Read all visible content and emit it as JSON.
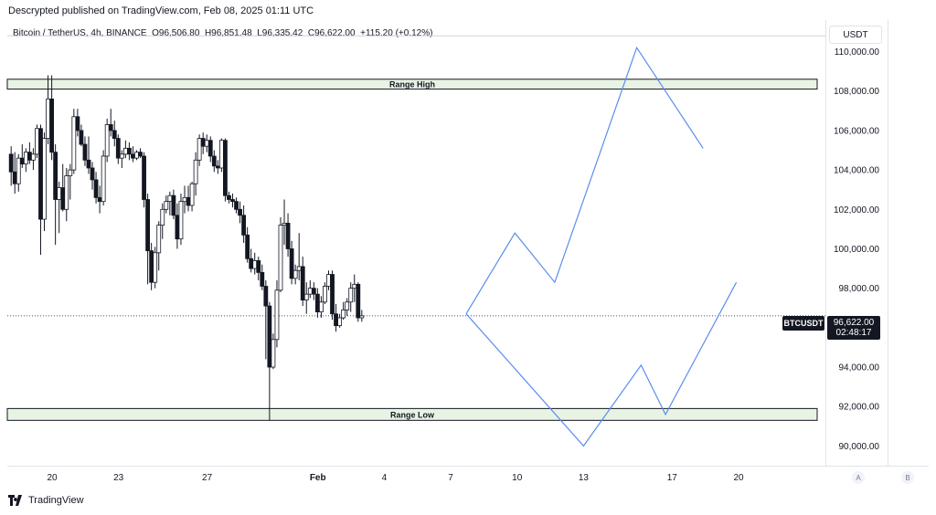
{
  "header": {
    "published": "Descrypted published on TradingView.com, Feb 08, 2025 01:11 UTC"
  },
  "symbol": {
    "name": "Bitcoin / TetherUS, 4h, BINANCE",
    "open": "O96,506.80",
    "high": "H96,851.48",
    "low": "L96,335.42",
    "close": "C96,622.00",
    "change": "+115.20 (+0.12%)"
  },
  "price_axis": {
    "currency": "USDT"
  },
  "last_price": {
    "symbol": "BTCUSDT",
    "value": "96,622.00",
    "countdown": "02:48:17"
  },
  "footer": {
    "logo_text": "TradingView",
    "btn_a": "A",
    "btn_b": "B"
  },
  "colors": {
    "up": "#ffffff",
    "down": "#131722",
    "projection": "#5b8def",
    "zone_fill": "#e8f3e4",
    "zone_border": "#131722"
  },
  "chart_data": {
    "type": "candlestick",
    "interval": "4h",
    "ylim": [
      89000,
      111600
    ],
    "y_ticks": [
      "90,000.00",
      "92,000.00",
      "94,000.00",
      "96,000.00",
      "98,000.00",
      "100,000.00",
      "102,000.00",
      "104,000.00",
      "106,000.00",
      "108,000.00",
      "110,000.00"
    ],
    "y_tick_values": [
      90000,
      92000,
      94000,
      96000,
      98000,
      100000,
      102000,
      104000,
      106000,
      108000,
      110000
    ],
    "x_ticks": [
      "20",
      "23",
      "27",
      "Feb",
      "4",
      "7",
      "10",
      "13",
      "17",
      "20"
    ],
    "x_tick_days": [
      20,
      23,
      27,
      32,
      35,
      38,
      41,
      44,
      48,
      51
    ],
    "zones": [
      {
        "label": "Range High",
        "from": 108100,
        "to": 108600
      },
      {
        "label": "Range Low",
        "from": 91300,
        "to": 91900
      }
    ],
    "candles": [
      {
        "o": 104800,
        "h": 105200,
        "l": 103200,
        "c": 103900
      },
      {
        "o": 103900,
        "h": 104900,
        "l": 102800,
        "c": 103300
      },
      {
        "o": 103300,
        "h": 104800,
        "l": 102900,
        "c": 104600
      },
      {
        "o": 104600,
        "h": 105300,
        "l": 104100,
        "c": 104300
      },
      {
        "o": 104300,
        "h": 105100,
        "l": 103900,
        "c": 104900
      },
      {
        "o": 104900,
        "h": 105400,
        "l": 104300,
        "c": 104500
      },
      {
        "o": 104500,
        "h": 105100,
        "l": 104000,
        "c": 104800
      },
      {
        "o": 104800,
        "h": 106300,
        "l": 104600,
        "c": 106100
      },
      {
        "o": 106100,
        "h": 106300,
        "l": 99700,
        "c": 101500
      },
      {
        "o": 101500,
        "h": 105900,
        "l": 100900,
        "c": 105600
      },
      {
        "o": 105600,
        "h": 108800,
        "l": 105300,
        "c": 107600
      },
      {
        "o": 107600,
        "h": 108800,
        "l": 104500,
        "c": 104900
      },
      {
        "o": 104900,
        "h": 105300,
        "l": 100200,
        "c": 102500
      },
      {
        "o": 102500,
        "h": 103400,
        "l": 100800,
        "c": 103100
      },
      {
        "o": 103100,
        "h": 104300,
        "l": 101900,
        "c": 102000
      },
      {
        "o": 102000,
        "h": 104100,
        "l": 101400,
        "c": 103700
      },
      {
        "o": 103700,
        "h": 104300,
        "l": 102500,
        "c": 104000
      },
      {
        "o": 104000,
        "h": 107100,
        "l": 103800,
        "c": 106700
      },
      {
        "o": 106700,
        "h": 107100,
        "l": 105700,
        "c": 106000
      },
      {
        "o": 106000,
        "h": 106300,
        "l": 105200,
        "c": 105300
      },
      {
        "o": 105300,
        "h": 105700,
        "l": 104200,
        "c": 104500
      },
      {
        "o": 104500,
        "h": 105700,
        "l": 103800,
        "c": 104100
      },
      {
        "o": 104100,
        "h": 104400,
        "l": 103000,
        "c": 103500
      },
      {
        "o": 103500,
        "h": 103900,
        "l": 102300,
        "c": 102600
      },
      {
        "o": 102600,
        "h": 103200,
        "l": 101800,
        "c": 102400
      },
      {
        "o": 102400,
        "h": 105000,
        "l": 102200,
        "c": 104700
      },
      {
        "o": 104700,
        "h": 106600,
        "l": 104400,
        "c": 106300
      },
      {
        "o": 106300,
        "h": 107100,
        "l": 105700,
        "c": 106000
      },
      {
        "o": 106000,
        "h": 106500,
        "l": 105200,
        "c": 105600
      },
      {
        "o": 105600,
        "h": 105800,
        "l": 104300,
        "c": 104600
      },
      {
        "o": 104600,
        "h": 105000,
        "l": 104100,
        "c": 104800
      },
      {
        "o": 104800,
        "h": 105500,
        "l": 104600,
        "c": 105100
      },
      {
        "o": 105100,
        "h": 105400,
        "l": 104500,
        "c": 104800
      },
      {
        "o": 104800,
        "h": 105200,
        "l": 104400,
        "c": 104600
      },
      {
        "o": 104600,
        "h": 105000,
        "l": 104500,
        "c": 104900
      },
      {
        "o": 104900,
        "h": 105100,
        "l": 104600,
        "c": 104700
      },
      {
        "o": 104700,
        "h": 104900,
        "l": 102100,
        "c": 102500
      },
      {
        "o": 102500,
        "h": 102800,
        "l": 98200,
        "c": 99900
      },
      {
        "o": 99900,
        "h": 100300,
        "l": 97900,
        "c": 98300
      },
      {
        "o": 98300,
        "h": 100100,
        "l": 98000,
        "c": 99800
      },
      {
        "o": 99800,
        "h": 101400,
        "l": 98900,
        "c": 101200
      },
      {
        "o": 101200,
        "h": 102300,
        "l": 100500,
        "c": 102000
      },
      {
        "o": 102000,
        "h": 102700,
        "l": 101800,
        "c": 102400
      },
      {
        "o": 102400,
        "h": 102900,
        "l": 101700,
        "c": 102700
      },
      {
        "o": 102700,
        "h": 103000,
        "l": 101500,
        "c": 101700
      },
      {
        "o": 101700,
        "h": 102300,
        "l": 100000,
        "c": 100500
      },
      {
        "o": 100500,
        "h": 102800,
        "l": 100200,
        "c": 102400
      },
      {
        "o": 102400,
        "h": 103200,
        "l": 101800,
        "c": 102600
      },
      {
        "o": 102600,
        "h": 103200,
        "l": 101900,
        "c": 102200
      },
      {
        "o": 102200,
        "h": 103400,
        "l": 101900,
        "c": 103300
      },
      {
        "o": 103300,
        "h": 104900,
        "l": 102700,
        "c": 104500
      },
      {
        "o": 104500,
        "h": 105800,
        "l": 104200,
        "c": 105600
      },
      {
        "o": 105600,
        "h": 105900,
        "l": 104800,
        "c": 105200
      },
      {
        "o": 105200,
        "h": 105800,
        "l": 104900,
        "c": 105500
      },
      {
        "o": 105500,
        "h": 105700,
        "l": 104400,
        "c": 104700
      },
      {
        "o": 104700,
        "h": 105000,
        "l": 103900,
        "c": 104200
      },
      {
        "o": 104200,
        "h": 104500,
        "l": 103800,
        "c": 104100
      },
      {
        "o": 104100,
        "h": 105600,
        "l": 103900,
        "c": 105500
      },
      {
        "o": 105500,
        "h": 105600,
        "l": 102400,
        "c": 102700
      },
      {
        "o": 102700,
        "h": 102900,
        "l": 102300,
        "c": 102500
      },
      {
        "o": 102500,
        "h": 102800,
        "l": 102100,
        "c": 102400
      },
      {
        "o": 102400,
        "h": 102600,
        "l": 101800,
        "c": 102000
      },
      {
        "o": 102000,
        "h": 102400,
        "l": 101300,
        "c": 101700
      },
      {
        "o": 101700,
        "h": 102200,
        "l": 100300,
        "c": 100700
      },
      {
        "o": 100700,
        "h": 101100,
        "l": 99300,
        "c": 99500
      },
      {
        "o": 99500,
        "h": 100000,
        "l": 98800,
        "c": 99000
      },
      {
        "o": 99000,
        "h": 99800,
        "l": 98700,
        "c": 99400
      },
      {
        "o": 99400,
        "h": 99600,
        "l": 98400,
        "c": 98800
      },
      {
        "o": 98800,
        "h": 99200,
        "l": 97900,
        "c": 98100
      },
      {
        "o": 98100,
        "h": 98400,
        "l": 94400,
        "c": 97100
      },
      {
        "o": 97100,
        "h": 97300,
        "l": 91300,
        "c": 94000
      },
      {
        "o": 94000,
        "h": 95700,
        "l": 93900,
        "c": 95400
      },
      {
        "o": 95400,
        "h": 98400,
        "l": 95000,
        "c": 97900
      },
      {
        "o": 97900,
        "h": 101600,
        "l": 97800,
        "c": 101200
      },
      {
        "o": 101200,
        "h": 102500,
        "l": 100200,
        "c": 101300
      },
      {
        "o": 101300,
        "h": 101800,
        "l": 99600,
        "c": 100000
      },
      {
        "o": 100000,
        "h": 100400,
        "l": 98200,
        "c": 98500
      },
      {
        "o": 98500,
        "h": 99200,
        "l": 98200,
        "c": 98900
      },
      {
        "o": 98900,
        "h": 100800,
        "l": 98400,
        "c": 99100
      },
      {
        "o": 99100,
        "h": 99600,
        "l": 97100,
        "c": 97400
      },
      {
        "o": 97400,
        "h": 98300,
        "l": 96700,
        "c": 97700
      },
      {
        "o": 97700,
        "h": 98400,
        "l": 97500,
        "c": 98000
      },
      {
        "o": 98000,
        "h": 98300,
        "l": 97400,
        "c": 97700
      },
      {
        "o": 97700,
        "h": 98000,
        "l": 96500,
        "c": 96800
      },
      {
        "o": 96800,
        "h": 97600,
        "l": 96500,
        "c": 97300
      },
      {
        "o": 97300,
        "h": 98300,
        "l": 97200,
        "c": 98100
      },
      {
        "o": 98100,
        "h": 98900,
        "l": 97900,
        "c": 98700
      },
      {
        "o": 98700,
        "h": 98900,
        "l": 96400,
        "c": 96700
      },
      {
        "o": 96700,
        "h": 97200,
        "l": 95800,
        "c": 96100
      },
      {
        "o": 96100,
        "h": 96700,
        "l": 96000,
        "c": 96500
      },
      {
        "o": 96500,
        "h": 97300,
        "l": 96400,
        "c": 96900
      },
      {
        "o": 96900,
        "h": 97500,
        "l": 96600,
        "c": 97300
      },
      {
        "o": 97300,
        "h": 98300,
        "l": 96800,
        "c": 98000
      },
      {
        "o": 98000,
        "h": 98700,
        "l": 97300,
        "c": 98200
      },
      {
        "o": 98200,
        "h": 98300,
        "l": 96300,
        "c": 96500
      },
      {
        "o": 96500,
        "h": 96900,
        "l": 96300,
        "c": 96600
      }
    ],
    "candle_start_day": 18.15,
    "candle_step_day": 0.1667,
    "projections": [
      {
        "points": [
          [
            38.7,
            96700
          ],
          [
            40.9,
            100800
          ],
          [
            42.7,
            98300
          ],
          [
            46.4,
            110200
          ],
          [
            49.4,
            105100
          ]
        ]
      },
      {
        "points": [
          [
            38.7,
            96700
          ],
          [
            44.0,
            90000
          ],
          [
            46.6,
            94100
          ],
          [
            47.7,
            91600
          ],
          [
            50.9,
            98300
          ]
        ]
      }
    ]
  }
}
